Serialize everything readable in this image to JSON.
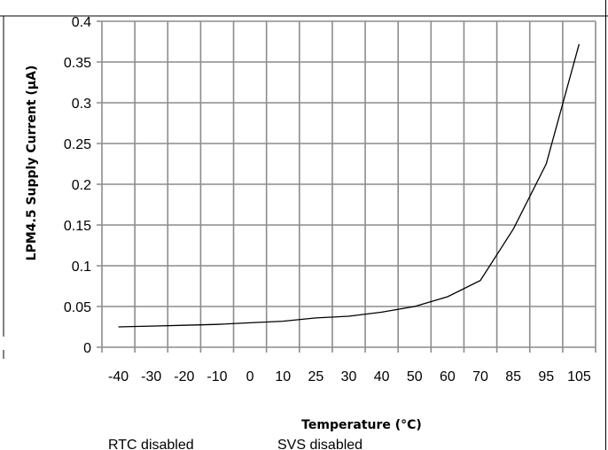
{
  "chart_data": {
    "type": "line",
    "categories": [
      "-40",
      "-30",
      "-20",
      "-10",
      "0",
      "10",
      "25",
      "30",
      "40",
      "50",
      "60",
      "70",
      "85",
      "95",
      "105"
    ],
    "series": [
      {
        "values": [
          0.025,
          0.026,
          0.027,
          0.028,
          0.03,
          0.032,
          0.036,
          0.038,
          0.043,
          0.05,
          0.062,
          0.082,
          0.145,
          0.225,
          0.372
        ]
      }
    ],
    "xlabel": "Temperature (°C)",
    "ylabel": "LPM4.5 Supply Current (µA)",
    "yticks": [
      "0",
      "0.05",
      "0.1",
      "0.15",
      "0.2",
      "0.25",
      "0.3",
      "0.35",
      "0.4"
    ],
    "ylim": [
      0,
      0.4
    ],
    "grid": true,
    "line_color": "#000000",
    "grid_color": "#8c8c8c"
  },
  "notes": {
    "rtc": "RTC disabled",
    "svs": "SVS disabled"
  }
}
